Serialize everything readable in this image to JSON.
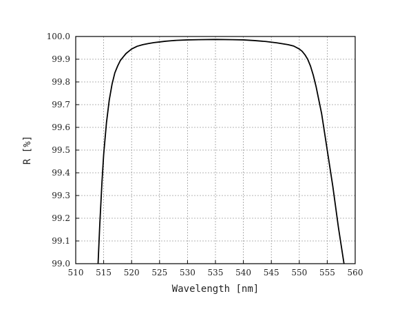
{
  "chart_data": {
    "type": "line",
    "title": "",
    "xlabel": "Wavelength [nm]",
    "ylabel": "R [%]",
    "xlim": [
      510,
      560
    ],
    "ylim": [
      99.0,
      100.0
    ],
    "xticks": [
      510,
      515,
      520,
      525,
      530,
      535,
      540,
      545,
      550,
      555,
      560
    ],
    "yticks": [
      99.0,
      99.1,
      99.2,
      99.3,
      99.4,
      99.5,
      99.6,
      99.7,
      99.8,
      99.9,
      100.0
    ],
    "xtick_labels": [
      "510",
      "515",
      "520",
      "525",
      "530",
      "535",
      "540",
      "545",
      "550",
      "555",
      "560"
    ],
    "ytick_labels": [
      "99.0",
      "99.1",
      "99.2",
      "99.3",
      "99.4",
      "99.5",
      "99.6",
      "99.7",
      "99.8",
      "99.9",
      "100.0"
    ],
    "grid": true,
    "line_color": "#000000",
    "grid_color": "#9a9a9a",
    "series": [
      {
        "x": [
          514.0,
          514.3,
          514.7,
          515.0,
          515.5,
          516.0,
          516.5,
          517.0,
          517.5,
          518.0,
          518.5,
          519.0,
          519.5,
          520.0,
          521.0,
          522.0,
          523.0,
          524.0,
          525.0,
          526.0,
          527.0,
          528.0,
          530.0,
          532.0,
          535.0,
          538.0,
          540.0,
          542.0,
          544.0,
          546.0,
          548.0,
          549.0,
          550.0,
          550.5,
          551.0,
          551.5,
          552.0,
          552.5,
          553.0,
          553.5,
          554.0,
          554.5,
          555.0,
          555.5,
          556.0,
          556.5,
          557.0,
          557.5,
          558.0
        ],
        "y": [
          99.0,
          99.17,
          99.36,
          99.48,
          99.62,
          99.72,
          99.79,
          99.84,
          99.87,
          99.895,
          99.91,
          99.925,
          99.935,
          99.945,
          99.957,
          99.964,
          99.969,
          99.973,
          99.976,
          99.979,
          99.981,
          99.983,
          99.985,
          99.986,
          99.987,
          99.986,
          99.985,
          99.982,
          99.978,
          99.972,
          99.964,
          99.958,
          99.945,
          99.935,
          99.92,
          99.9,
          99.87,
          99.83,
          99.78,
          99.72,
          99.66,
          99.58,
          99.5,
          99.42,
          99.34,
          99.25,
          99.16,
          99.08,
          99.0
        ]
      }
    ]
  }
}
